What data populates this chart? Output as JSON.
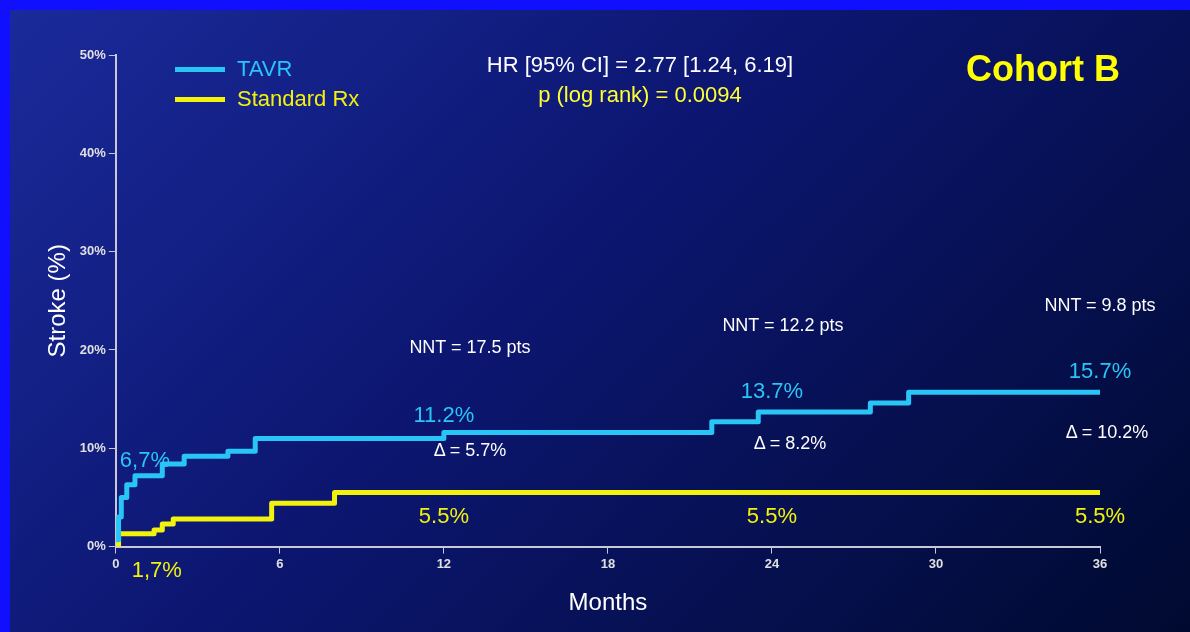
{
  "chart_data": {
    "type": "step",
    "title": "Cohort B",
    "subtitle": "HR [95% CI] = 2.77 [1.24, 6.19]",
    "xlabel": "Months",
    "ylabel": "Stroke (%)",
    "xlim": [
      0,
      36
    ],
    "xticks": [
      0,
      6,
      12,
      18,
      24,
      30,
      36
    ],
    "ylim": [
      0,
      50
    ],
    "yticks": [
      {
        "value": 0,
        "label": "0%"
      },
      {
        "value": 10,
        "label": "10%"
      },
      {
        "value": 20,
        "label": "20%"
      },
      {
        "value": 30,
        "label": "30%"
      },
      {
        "value": 40,
        "label": "40%"
      },
      {
        "value": 50,
        "label": "50%"
      }
    ],
    "grid": false,
    "legend": "top left",
    "marker": "none",
    "line_style": "solid",
    "series": [
      {
        "name": "TAVR",
        "color": "#29c5f6",
        "x": [
          0,
          0.1,
          0.2,
          0.4,
          0.7,
          1.7,
          2.5,
          4.1,
          5.1,
          12.0,
          21.8,
          23.5,
          27.6,
          29.0,
          36
        ],
        "values": [
          0.7,
          3.0,
          5.0,
          6.3,
          7.2,
          8.4,
          9.2,
          9.7,
          11.0,
          11.6,
          12.7,
          13.7,
          14.6,
          15.7,
          15.7
        ]
      },
      {
        "name": "Standard Rx",
        "color": "#f2f20c",
        "x": [
          0,
          0.1,
          1.4,
          1.7,
          2.1,
          5.7,
          8.0,
          36
        ],
        "values": [
          0,
          1.3,
          1.7,
          2.3,
          2.8,
          4.4,
          5.5,
          5.5
        ]
      }
    ],
    "annotations": [
      "p (log rank) = 0.0094",
      "NNT = 17.5 pts",
      "Δ = 5.7%",
      "NNT = 12.2 pts",
      "Δ = 8.2%",
      "NNT = 9.8 pts",
      "Δ = 10.2%",
      {
        "text": "6,7%",
        "x": 1.0,
        "y": 6.7
      },
      {
        "text": "1,7%",
        "x": 1.5,
        "y": 1.7
      },
      {
        "text": "11.2%",
        "x": 12,
        "y": 11.2
      },
      {
        "text": "13.7%",
        "x": 24,
        "y": 13.7
      },
      {
        "text": "15.7%",
        "x": 36,
        "y": 15.7
      },
      {
        "text": "5.5%",
        "x": 12,
        "y": 5.5
      },
      {
        "text": "5.5%",
        "x": 24,
        "y": 5.5
      },
      {
        "text": "5.5%",
        "x": 36,
        "y": 5.5
      }
    ]
  }
}
